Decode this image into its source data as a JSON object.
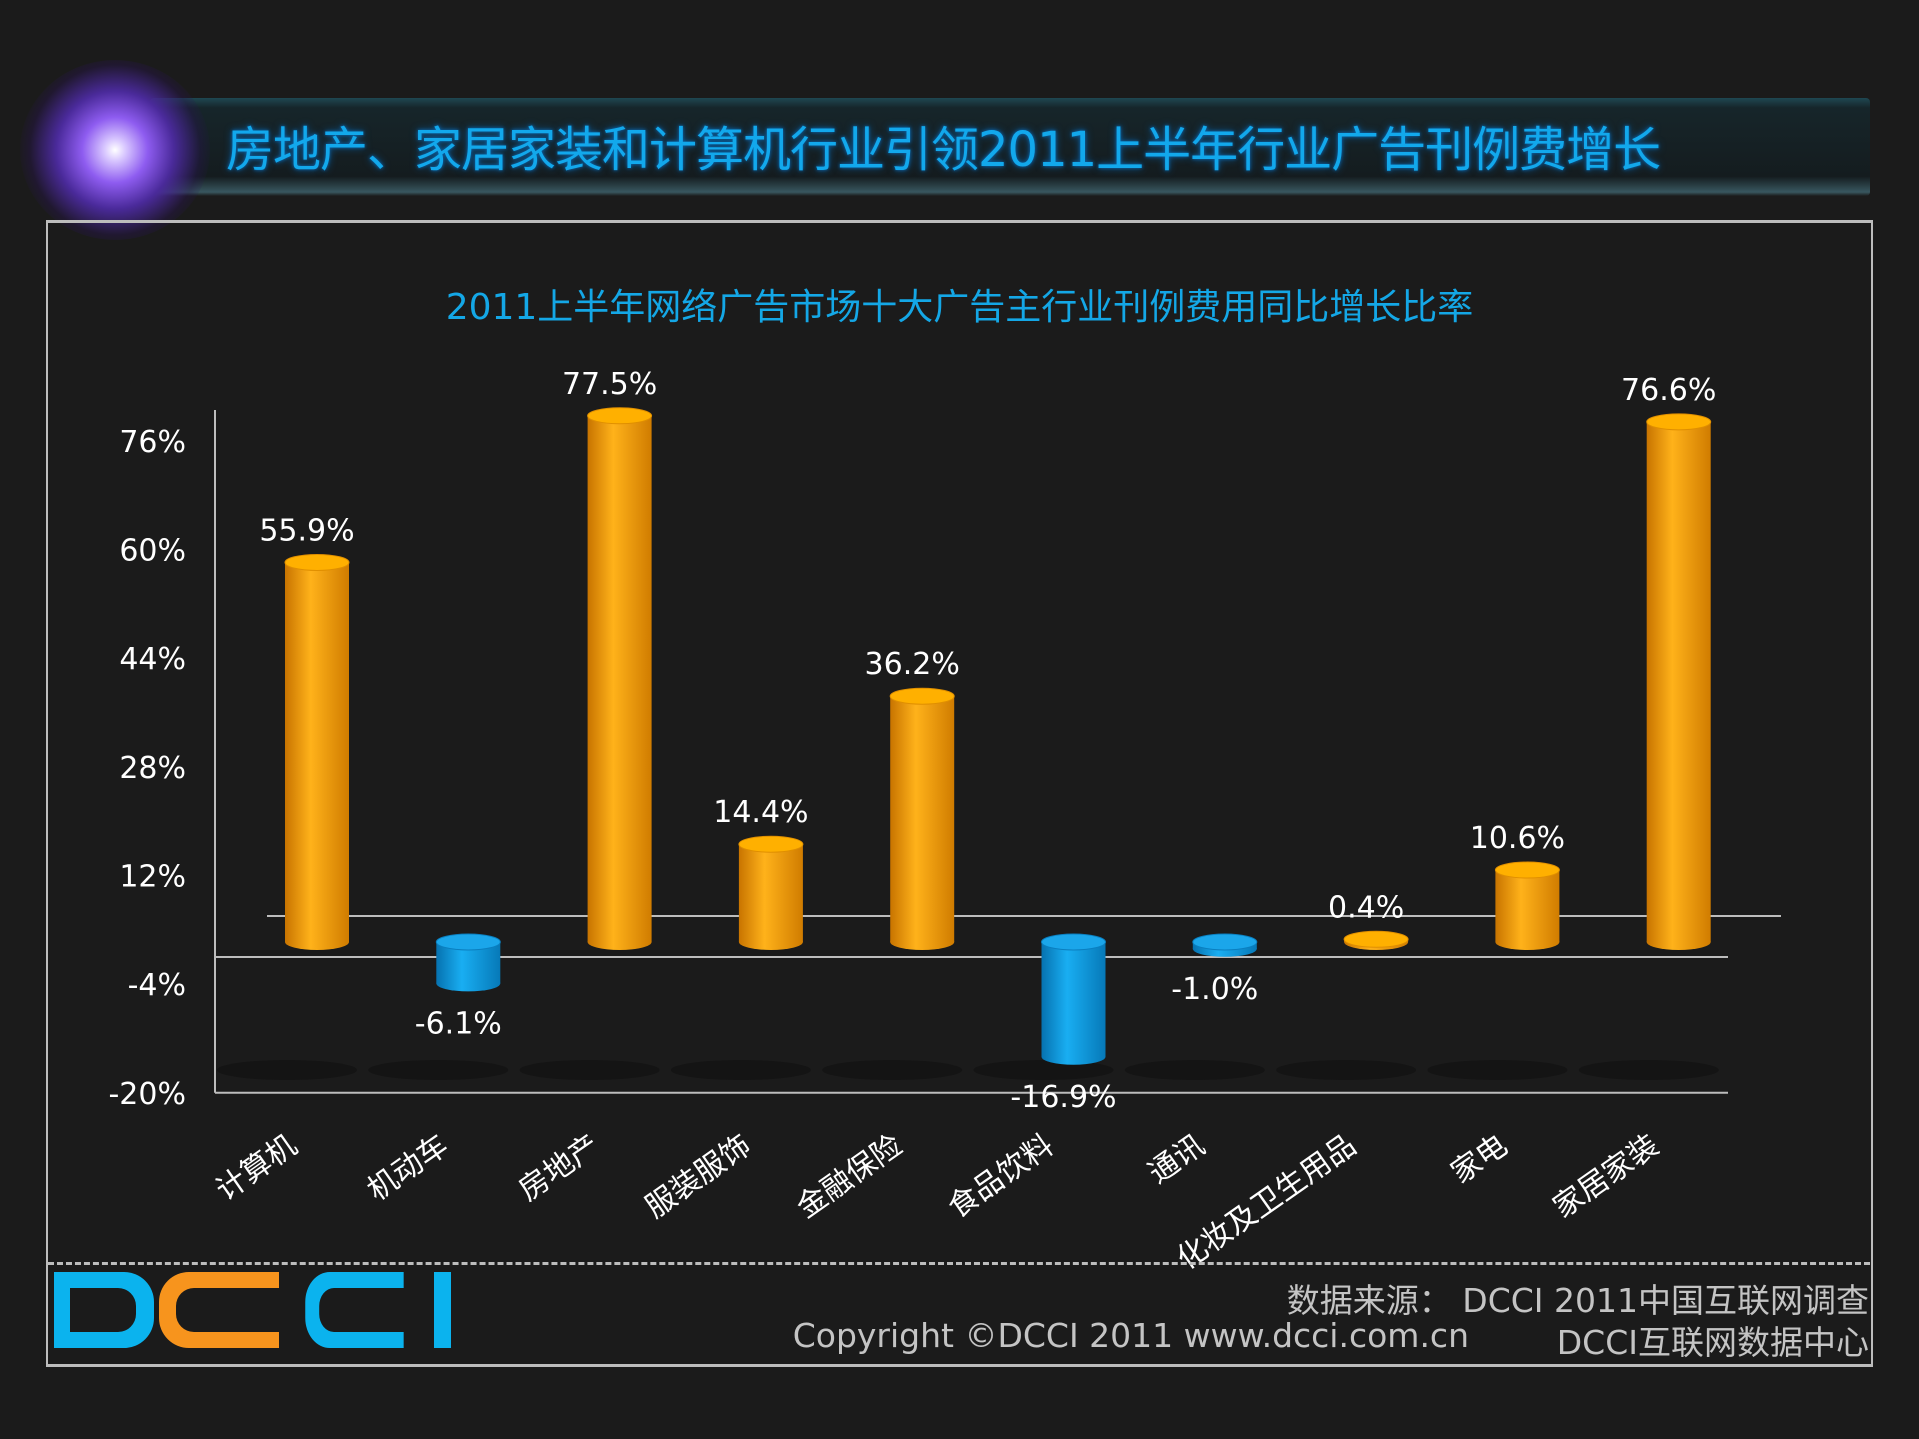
{
  "header": {
    "title": "房地产、家居家装和计算机行业引领2011上半年行业广告刊例费增长"
  },
  "chart_data": {
    "type": "bar",
    "title": "2011上半年网络广告市场十大广告主行业刊例费用同比增长比率",
    "categories": [
      "计算机",
      "机动车",
      "房地产",
      "服装服饰",
      "金融保险",
      "食品饮料",
      "通讯",
      "化妆及卫生用品",
      "家电",
      "家居家装"
    ],
    "values": [
      55.9,
      -6.1,
      77.5,
      14.4,
      36.2,
      -16.9,
      -1.0,
      0.4,
      10.6,
      76.6
    ],
    "data_labels": [
      "55.9%",
      "-6.1%",
      "77.5%",
      "14.4%",
      "36.2%",
      "-16.9%",
      "-1.0%",
      "0.4%",
      "10.6%",
      "76.6%"
    ],
    "yticks": [
      -20,
      -4,
      12,
      28,
      44,
      60,
      76
    ],
    "ytick_labels": [
      "-20%",
      "-4%",
      "12%",
      "28%",
      "44%",
      "60%",
      "76%"
    ],
    "ylim": [
      -20,
      76
    ],
    "style": "3d-cylinder",
    "colors": {
      "positive": "#f7a000",
      "negative": "#0d9be0"
    },
    "grid": false,
    "legend": "none"
  },
  "footer": {
    "logo_text": "DCCI",
    "source": "数据来源： DCCI 2011中国互联网调查",
    "copyright": "Copyright ©DCCI 2011 www.dcci.com.cn",
    "org": "DCCI互联网数据中心"
  }
}
